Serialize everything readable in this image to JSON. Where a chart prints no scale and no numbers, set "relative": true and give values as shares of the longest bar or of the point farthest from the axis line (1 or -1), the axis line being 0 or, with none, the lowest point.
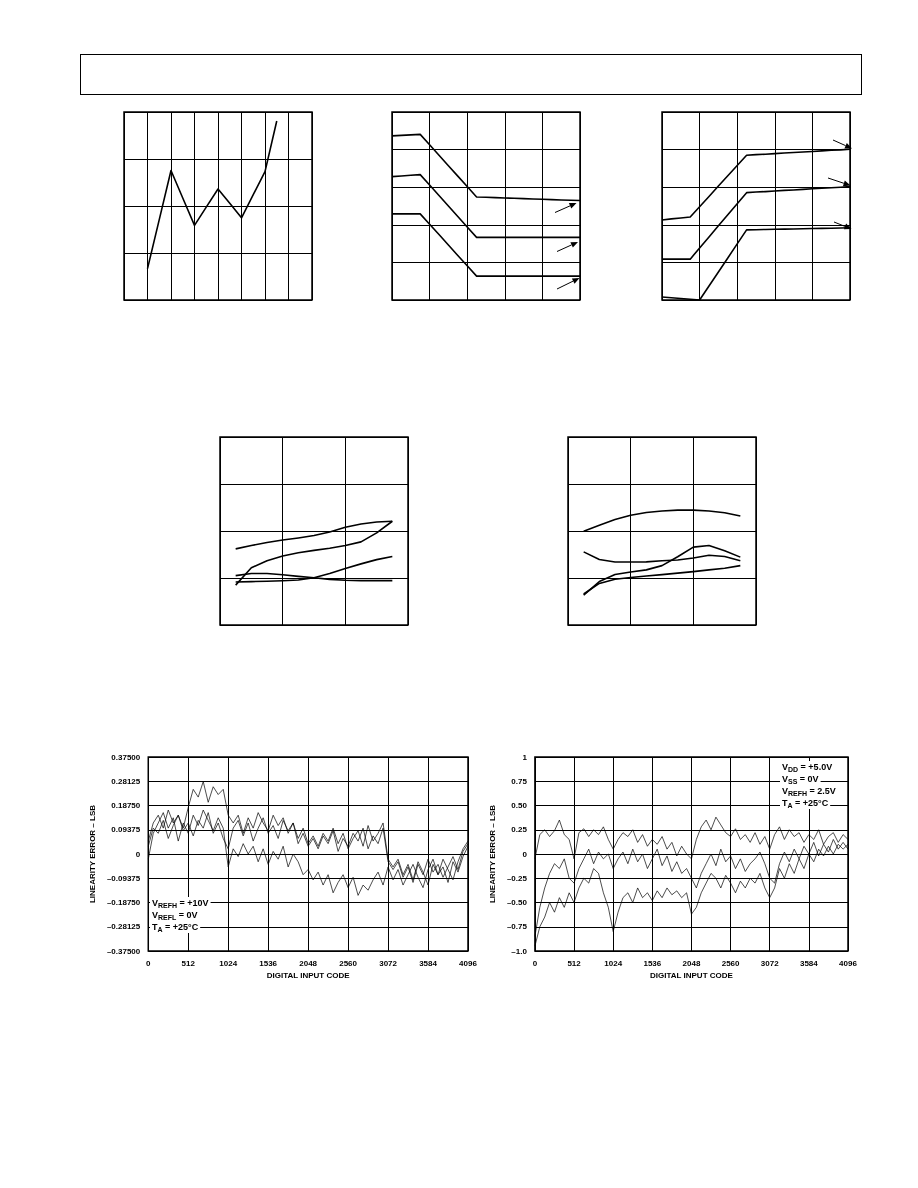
{
  "chart_data": [
    {
      "type": "line",
      "relative": true,
      "grid": true,
      "marker": "none",
      "categories": [
        null,
        null,
        null,
        null,
        null,
        null,
        null,
        null,
        null,
        null,
        null,
        null,
        null,
        null,
        null,
        null,
        null
      ],
      "series": [
        {
          "color": "#000000",
          "values": [
            null,
            null,
            0.175,
            0.449,
            0.723,
            0.57,
            0.417,
            0.519,
            0.62,
            0.54,
            0.459,
            0.588,
            0.717,
            1.0,
            null,
            null,
            null
          ]
        }
      ]
    },
    {
      "type": "line",
      "relative": true,
      "grid": true,
      "marker": "none",
      "categories": [
        null,
        null,
        null,
        null,
        null,
        null,
        null,
        null,
        null,
        null,
        null,
        null,
        null,
        null,
        null,
        null,
        null,
        null,
        null,
        null,
        null
      ],
      "series": [
        {
          "color": "#000000",
          "values": [
            0.991,
            0.994,
            0.997,
            1.0,
            0.937,
            0.874,
            0.811,
            0.748,
            0.685,
            0.622,
            0.62,
            0.618,
            0.616,
            0.614,
            0.612,
            0.61,
            0.608,
            0.606,
            0.604,
            0.602,
            0.601
          ]
        },
        {
          "color": "#000000",
          "values": [
            0.745,
            0.749,
            0.753,
            0.757,
            0.694,
            0.631,
            0.567,
            0.504,
            0.441,
            0.378,
            0.378,
            0.378,
            0.378,
            0.378,
            0.378,
            0.378,
            0.378,
            0.378,
            0.378,
            0.378,
            0.378
          ]
        },
        {
          "color": "#000000",
          "values": [
            0.52,
            0.52,
            0.52,
            0.52,
            0.457,
            0.395,
            0.332,
            0.269,
            0.207,
            0.144,
            0.144,
            0.144,
            0.144,
            0.144,
            0.144,
            0.144,
            0.144,
            0.144,
            0.144,
            0.144,
            0.144
          ]
        }
      ]
    },
    {
      "type": "line",
      "relative": true,
      "grid": true,
      "marker": "none",
      "categories": [
        null,
        null,
        null,
        null,
        null,
        null,
        null,
        null,
        null,
        null,
        null,
        null,
        null,
        null,
        null,
        null,
        null,
        null,
        null,
        null,
        null
      ],
      "series": [
        {
          "color": "#000000",
          "values": [
            0.531,
            0.538,
            0.544,
            0.551,
            0.619,
            0.687,
            0.756,
            0.824,
            0.892,
            0.96,
            0.964,
            0.967,
            0.971,
            0.975,
            0.978,
            0.982,
            0.985,
            0.989,
            0.993,
            0.996,
            1.0
          ]
        },
        {
          "color": "#000000",
          "values": [
            0.271,
            0.271,
            0.271,
            0.271,
            0.345,
            0.418,
            0.492,
            0.565,
            0.639,
            0.712,
            0.716,
            0.719,
            0.723,
            0.727,
            0.73,
            0.734,
            0.738,
            0.741,
            0.745,
            0.748,
            0.752
          ]
        },
        {
          "color": "#000000",
          "values": [
            0.02,
            0.015,
            0.01,
            0.005,
            0,
            0.093,
            0.186,
            0.279,
            0.372,
            0.465,
            0.466,
            0.468,
            0.469,
            0.47,
            0.471,
            0.473,
            0.474,
            0.475,
            0.476,
            0.478,
            0.479
          ]
        }
      ]
    },
    {
      "type": "line",
      "relative": true,
      "grid": true,
      "marker": "none",
      "categories": [
        null,
        null,
        null,
        null,
        null,
        null,
        null,
        null,
        null,
        null,
        null,
        null,
        null
      ],
      "series": [
        {
          "color": "#000000",
          "values": [
            null,
            0.734,
            0.766,
            0.795,
            0.819,
            0.839,
            0.862,
            0.897,
            0.942,
            0.973,
            0.993,
            1.0,
            null
          ]
        },
        {
          "color": "#000000",
          "values": [
            null,
            0.384,
            0.551,
            0.62,
            0.665,
            0.696,
            0.719,
            0.739,
            0.766,
            0.801,
            0.888,
            1.0,
            null
          ]
        },
        {
          "color": "#000000",
          "values": [
            null,
            0.415,
            0.418,
            0.422,
            0.426,
            0.433,
            0.455,
            0.496,
            0.545,
            0.589,
            0.63,
            0.661,
            null
          ]
        },
        {
          "color": "#000000",
          "values": [
            null,
            0.476,
            0.496,
            0.496,
            0.484,
            0.469,
            0.455,
            0.44,
            0.431,
            0.428,
            0.428,
            0.428,
            null
          ]
        }
      ]
    },
    {
      "type": "line",
      "relative": true,
      "grid": true,
      "marker": "none",
      "categories": [
        null,
        null,
        null,
        null,
        null,
        null,
        null,
        null,
        null,
        null,
        null,
        null,
        null
      ],
      "series": [
        {
          "color": "#000000",
          "values": [
            null,
            0.817,
            0.869,
            0.918,
            0.956,
            0.98,
            0.993,
            1.0,
            1.0,
            0.993,
            0.977,
            0.949,
            null
          ]
        },
        {
          "color": "#000000",
          "values": [
            null,
            0.26,
            0.378,
            0.439,
            0.462,
            0.48,
            0.517,
            0.594,
            0.678,
            0.692,
            0.646,
            0.591,
            null
          ]
        },
        {
          "color": "#000000",
          "values": [
            null,
            0.637,
            0.57,
            0.548,
            0.548,
            0.55,
            0.56,
            0.566,
            0.584,
            0.607,
            0.597,
            0.56,
            null
          ]
        },
        {
          "color": "#000000",
          "values": [
            null,
            0.27,
            0.362,
            0.399,
            0.414,
            0.427,
            0.439,
            0.452,
            0.465,
            0.48,
            0.494,
            0.517,
            null
          ]
        }
      ]
    },
    {
      "type": "line",
      "grid": true,
      "marker": "none",
      "xlabel": "DIGITAL INPUT CODE",
      "ylabel": "LINEARITY ERROR – LSB",
      "annotations": [
        "V$_{REFH}$ = +10V",
        "V$_{REFL}$ = 0V",
        "T$_{A}$ = +25°C"
      ],
      "xlim": [
        0,
        4096
      ],
      "xticks": [
        0,
        512,
        1024,
        1536,
        2048,
        2560,
        3072,
        3584,
        4096
      ],
      "ylim": [
        -0.375,
        0.375
      ],
      "yticks": [
        {
          "value": -0.375,
          "label": "–0.37500"
        },
        {
          "value": -0.28125,
          "label": "–0.28125"
        },
        {
          "value": -0.1875,
          "label": "–0.18750"
        },
        {
          "value": -0.09375,
          "label": "–0.09375"
        },
        0,
        {
          "value": 0.09375,
          "label": "0.09375"
        },
        {
          "value": 0.1875,
          "label": "0.18750"
        },
        {
          "value": 0.28125,
          "label": "0.28125"
        },
        {
          "value": 0.375,
          "label": "0.37500"
        }
      ],
      "x": [
        0,
        64,
        128,
        192,
        256,
        320,
        384,
        448,
        512,
        576,
        640,
        704,
        768,
        832,
        896,
        960,
        1024,
        1088,
        1152,
        1216,
        1280,
        1344,
        1408,
        1472,
        1536,
        1600,
        1664,
        1728,
        1792,
        1856,
        1920,
        1984,
        2048,
        2112,
        2176,
        2240,
        2304,
        2368,
        2432,
        2496,
        2560,
        2624,
        2688,
        2752,
        2816,
        2880,
        2944,
        3008,
        3072,
        3136,
        3200,
        3264,
        3328,
        3392,
        3456,
        3520,
        3584,
        3648,
        3712,
        3776,
        3840,
        3904,
        3968,
        4032,
        4096
      ],
      "series": [
        {
          "color": "#000000",
          "values": [
            0.05,
            0.12,
            0.15,
            0.1,
            0.17,
            0.12,
            0.15,
            0.1,
            0.18,
            0.25,
            0.22,
            0.28,
            0.2,
            0.26,
            0.23,
            0.25,
            0.15,
            0.12,
            0.15,
            0.08,
            0.14,
            0.1,
            0.16,
            0.12,
            0.09,
            0.15,
            0.11,
            0.14,
            0.08,
            0.12,
            0.06,
            0.1,
            0.04,
            0.07,
            0.03,
            0.08,
            0.05,
            0.1,
            0.04,
            0.08,
            0.02,
            0.06,
            0.09,
            0.03,
            0.11,
            0.05,
            0.08,
            0.12,
            -0.02,
            -0.05,
            -0.02,
            -0.08,
            -0.04,
            -0.1,
            -0.03,
            -0.07,
            -0.12,
            -0.04,
            -0.08,
            -0.02,
            -0.06,
            -0.1,
            -0.03,
            0.02,
            0.05
          ]
        },
        {
          "color": "#000000",
          "values": [
            -0.02,
            0.08,
            0.12,
            0.16,
            0.1,
            0.14,
            0.05,
            0.12,
            0.08,
            0.15,
            0.11,
            0.17,
            0.13,
            0.09,
            0.14,
            0.1,
            -0.05,
            0.02,
            -0.01,
            0.04,
            0.0,
            0.03,
            -0.03,
            0.02,
            -0.04,
            0.01,
            -0.02,
            0.03,
            -0.05,
            0.0,
            -0.03,
            -0.08,
            -0.06,
            -0.1,
            -0.07,
            -0.12,
            -0.08,
            -0.15,
            -0.11,
            -0.08,
            -0.13,
            -0.09,
            -0.16,
            -0.12,
            -0.14,
            -0.1,
            -0.07,
            -0.12,
            -0.05,
            -0.1,
            -0.06,
            -0.12,
            -0.08,
            -0.04,
            -0.09,
            -0.13,
            -0.06,
            -0.02,
            -0.08,
            -0.05,
            -0.11,
            -0.03,
            -0.07,
            -0.01,
            0.03
          ]
        },
        {
          "color": "#000000",
          "values": [
            0.03,
            0.1,
            0.08,
            0.13,
            0.06,
            0.11,
            0.15,
            0.09,
            0.12,
            0.07,
            0.13,
            0.1,
            0.16,
            0.08,
            0.12,
            0.06,
            0.02,
            0.1,
            0.13,
            0.07,
            0.12,
            0.05,
            0.1,
            0.14,
            0.08,
            0.11,
            0.06,
            0.13,
            0.09,
            0.12,
            0.04,
            0.08,
            0.03,
            0.06,
            0.02,
            0.07,
            0.04,
            0.09,
            0.01,
            0.06,
            0.03,
            0.08,
            0.05,
            0.1,
            0.02,
            0.07,
            0.04,
            0.1,
            -0.03,
            -0.06,
            -0.03,
            -0.09,
            -0.05,
            -0.11,
            -0.04,
            -0.08,
            -0.02,
            -0.07,
            -0.04,
            -0.09,
            -0.05,
            -0.01,
            -0.06,
            0.01,
            0.04
          ]
        }
      ]
    },
    {
      "type": "line",
      "grid": true,
      "marker": "none",
      "xlabel": "DIGITAL INPUT CODE",
      "ylabel": "LINEARITY ERROR – LSB",
      "annotations": [
        "V$_{DD}$ = +5.0V",
        "V$_{SS}$ = 0V",
        "V$_{REFH}$ = 2.5V",
        "T$_{A}$ = +25°C"
      ],
      "xlim": [
        0,
        4096
      ],
      "xticks": [
        0,
        512,
        1024,
        1536,
        2048,
        2560,
        3072,
        3584,
        4096
      ],
      "ylim": [
        -1,
        1
      ],
      "yticks": [
        {
          "value": -1,
          "label": "–1.0"
        },
        {
          "value": -0.75,
          "label": "–0.75"
        },
        {
          "value": -0.5,
          "label": "–0.50"
        },
        {
          "value": -0.25,
          "label": "–0.25"
        },
        0,
        0.25,
        {
          "value": 0.5,
          "label": "0.50"
        },
        0.75,
        1
      ],
      "x": [
        0,
        64,
        128,
        192,
        256,
        320,
        384,
        448,
        512,
        576,
        640,
        704,
        768,
        832,
        896,
        960,
        1024,
        1088,
        1152,
        1216,
        1280,
        1344,
        1408,
        1472,
        1536,
        1600,
        1664,
        1728,
        1792,
        1856,
        1920,
        1984,
        2048,
        2112,
        2176,
        2240,
        2304,
        2368,
        2432,
        2496,
        2560,
        2624,
        2688,
        2752,
        2816,
        2880,
        2944,
        3008,
        3072,
        3136,
        3200,
        3264,
        3328,
        3392,
        3456,
        3520,
        3584,
        3648,
        3712,
        3776,
        3840,
        3904,
        3968,
        4032,
        4096
      ],
      "series": [
        {
          "color": "#000000",
          "values": [
            -0.05,
            0.2,
            0.25,
            0.18,
            0.24,
            0.35,
            0.2,
            0.15,
            -0.05,
            0.22,
            0.26,
            0.18,
            0.25,
            0.2,
            0.28,
            0.15,
            0.05,
            0.15,
            0.22,
            0.18,
            0.25,
            0.12,
            0.2,
            0.08,
            0.15,
            0.1,
            0.18,
            0.05,
            0.12,
            -0.02,
            0.08,
            0.0,
            -0.05,
            0.15,
            0.28,
            0.35,
            0.25,
            0.38,
            0.3,
            0.22,
            0.18,
            0.26,
            0.15,
            0.2,
            0.12,
            0.22,
            0.1,
            0.18,
            0.05,
            0.2,
            0.28,
            0.15,
            0.25,
            0.18,
            0.22,
            0.12,
            0.2,
            0.15,
            0.25,
            0.1,
            0.18,
            0.22,
            0.12,
            0.2,
            0.15
          ]
        },
        {
          "color": "#000000",
          "values": [
            -0.85,
            -0.55,
            -0.35,
            -0.2,
            -0.1,
            -0.15,
            -0.05,
            -0.25,
            -0.3,
            -0.15,
            -0.05,
            0.05,
            -0.1,
            0.02,
            -0.05,
            0.0,
            -0.15,
            -0.05,
            0.02,
            -0.1,
            0.05,
            -0.08,
            0.0,
            -0.15,
            -0.05,
            0.05,
            -0.12,
            -0.02,
            -0.18,
            -0.08,
            -0.2,
            -0.15,
            -0.25,
            -0.35,
            -0.2,
            -0.1,
            0.0,
            -0.12,
            0.05,
            -0.08,
            -0.02,
            -0.15,
            -0.05,
            -0.18,
            -0.1,
            -0.05,
            0.02,
            -0.1,
            -0.25,
            -0.3,
            -0.1,
            0.02,
            -0.08,
            0.05,
            -0.05,
            0.08,
            0.0,
            0.12,
            -0.02,
            0.1,
            0.02,
            0.15,
            0.05,
            0.12,
            0.05
          ]
        },
        {
          "color": "#000000",
          "values": [
            -0.95,
            -0.75,
            -0.65,
            -0.5,
            -0.6,
            -0.45,
            -0.55,
            -0.4,
            -0.5,
            -0.35,
            -0.25,
            -0.3,
            -0.15,
            -0.2,
            -0.4,
            -0.55,
            -0.8,
            -0.6,
            -0.45,
            -0.4,
            -0.5,
            -0.35,
            -0.45,
            -0.4,
            -0.48,
            -0.38,
            -0.45,
            -0.35,
            -0.42,
            -0.38,
            -0.45,
            -0.4,
            -0.62,
            -0.55,
            -0.4,
            -0.3,
            -0.2,
            -0.25,
            -0.35,
            -0.22,
            -0.3,
            -0.4,
            -0.28,
            -0.35,
            -0.25,
            -0.3,
            -0.2,
            -0.35,
            -0.45,
            -0.35,
            -0.15,
            -0.25,
            -0.1,
            -0.2,
            -0.05,
            -0.15,
            0.0,
            -0.08,
            0.05,
            -0.02,
            0.08,
            0.0,
            0.1,
            0.05,
            0.1
          ]
        }
      ]
    }
  ]
}
